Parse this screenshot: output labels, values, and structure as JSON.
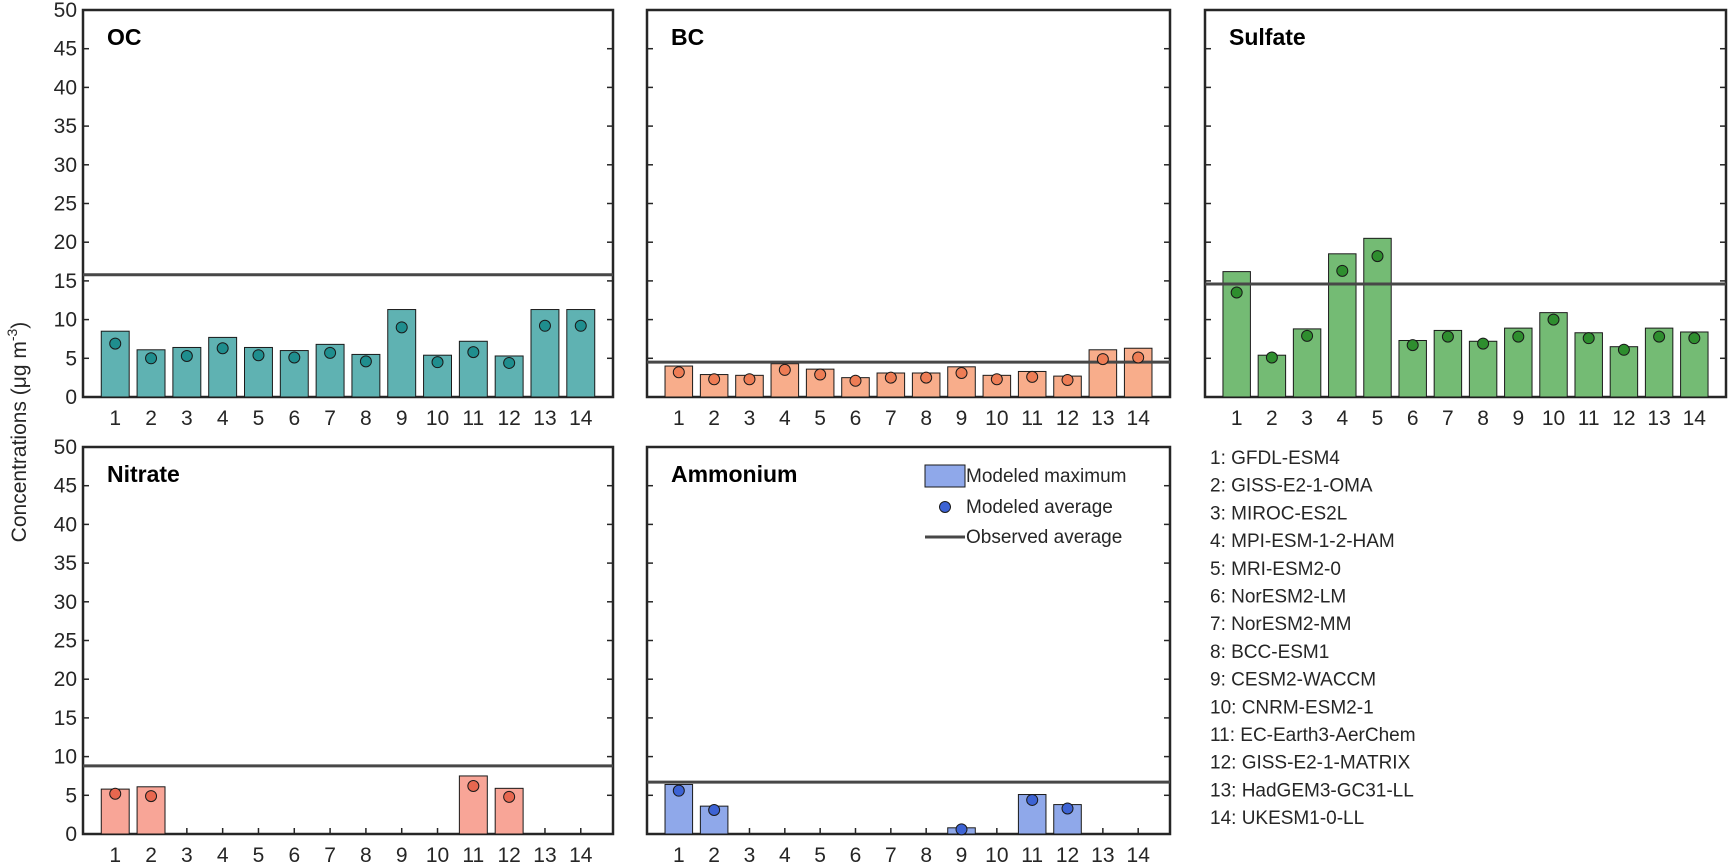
{
  "figure": {
    "ylabel_main": "Concentrations (μg m",
    "ylabel_sup": "-3",
    "ylabel_close": ")"
  },
  "legend": {
    "max_label": "Modeled maximum",
    "avg_label": "Modeled average",
    "obs_label": "Observed average",
    "max_color": "#8fa8ea",
    "avg_color": "#3d63d4"
  },
  "models": [
    "1: GFDL-ESM4",
    "2: GISS-E2-1-OMA",
    "3: MIROC-ES2L",
    "4: MPI-ESM-1-2-HAM",
    "5: MRI-ESM2-0",
    "6: NorESM2-LM",
    "7: NorESM2-MM",
    "8: BCC-ESM1",
    "9: CESM2-WACCM",
    "10: CNRM-ESM2-1",
    "11: EC-Earth3-AerChem",
    "12: GISS-E2-1-MATRIX",
    "13: HadGEM3-GC31-LL",
    "14: UKESM1-0-LL"
  ],
  "chart_data": [
    {
      "type": "bar",
      "title": "OC",
      "categories": [
        "1",
        "2",
        "3",
        "4",
        "5",
        "6",
        "7",
        "8",
        "9",
        "10",
        "11",
        "12",
        "13",
        "14"
      ],
      "ylim": [
        0,
        50
      ],
      "yticks": [
        0,
        5,
        10,
        15,
        20,
        25,
        30,
        35,
        40,
        45,
        50
      ],
      "series": [
        {
          "name": "Modeled maximum",
          "values": [
            8.5,
            6.1,
            6.4,
            7.7,
            6.4,
            6.0,
            6.8,
            5.5,
            11.3,
            5.4,
            7.2,
            5.3,
            11.3,
            11.3
          ]
        },
        {
          "name": "Modeled average",
          "values": [
            6.9,
            5.0,
            5.3,
            6.3,
            5.4,
            5.1,
            5.7,
            4.6,
            9.0,
            4.5,
            5.8,
            4.4,
            9.2,
            9.2
          ]
        }
      ],
      "observed_average": 15.8,
      "bar_color": "#5fb2b2",
      "dot_color": "#1f8e8e"
    },
    {
      "type": "bar",
      "title": "BC",
      "categories": [
        "1",
        "2",
        "3",
        "4",
        "5",
        "6",
        "7",
        "8",
        "9",
        "10",
        "11",
        "12",
        "13",
        "14"
      ],
      "ylim": [
        0,
        50
      ],
      "yticks": [
        0,
        5,
        10,
        15,
        20,
        25,
        30,
        35,
        40,
        45,
        50
      ],
      "series": [
        {
          "name": "Modeled maximum",
          "values": [
            4.0,
            2.9,
            2.8,
            4.3,
            3.6,
            2.5,
            3.1,
            3.1,
            3.9,
            2.8,
            3.3,
            2.7,
            6.1,
            6.3
          ]
        },
        {
          "name": "Modeled average",
          "values": [
            3.2,
            2.3,
            2.3,
            3.5,
            2.9,
            2.1,
            2.5,
            2.5,
            3.1,
            2.3,
            2.6,
            2.2,
            4.9,
            5.1
          ]
        }
      ],
      "observed_average": 4.5,
      "bar_color": "#f8ad8b",
      "dot_color": "#ee7d55"
    },
    {
      "type": "bar",
      "title": "Sulfate",
      "categories": [
        "1",
        "2",
        "3",
        "4",
        "5",
        "6",
        "7",
        "8",
        "9",
        "10",
        "11",
        "12",
        "13",
        "14"
      ],
      "ylim": [
        0,
        50
      ],
      "yticks": [
        0,
        5,
        10,
        15,
        20,
        25,
        30,
        35,
        40,
        45,
        50
      ],
      "series": [
        {
          "name": "Modeled maximum",
          "values": [
            16.2,
            5.4,
            8.8,
            18.5,
            20.5,
            7.3,
            8.6,
            7.2,
            8.9,
            10.9,
            8.3,
            6.5,
            8.9,
            8.4
          ]
        },
        {
          "name": "Modeled average",
          "values": [
            13.5,
            5.1,
            7.9,
            16.3,
            18.2,
            6.7,
            7.8,
            6.9,
            7.8,
            10.0,
            7.6,
            6.1,
            7.8,
            7.6
          ]
        }
      ],
      "observed_average": 14.6,
      "bar_color": "#74bb74",
      "dot_color": "#2e8e2e"
    },
    {
      "type": "bar",
      "title": "Nitrate",
      "categories": [
        "1",
        "2",
        "3",
        "4",
        "5",
        "6",
        "7",
        "8",
        "9",
        "10",
        "11",
        "12",
        "13",
        "14"
      ],
      "ylim": [
        0,
        50
      ],
      "yticks": [
        0,
        5,
        10,
        15,
        20,
        25,
        30,
        35,
        40,
        45,
        50
      ],
      "series": [
        {
          "name": "Modeled maximum",
          "values": [
            5.8,
            6.1,
            null,
            null,
            null,
            null,
            null,
            null,
            null,
            null,
            7.5,
            5.9,
            null,
            null
          ]
        },
        {
          "name": "Modeled average",
          "values": [
            5.2,
            4.9,
            null,
            null,
            null,
            null,
            null,
            null,
            null,
            null,
            6.2,
            4.8,
            null,
            null
          ]
        }
      ],
      "observed_average": 8.8,
      "bar_color": "#f8a597",
      "dot_color": "#e8674f"
    },
    {
      "type": "bar",
      "title": "Ammonium",
      "categories": [
        "1",
        "2",
        "3",
        "4",
        "5",
        "6",
        "7",
        "8",
        "9",
        "10",
        "11",
        "12",
        "13",
        "14"
      ],
      "ylim": [
        0,
        50
      ],
      "yticks": [
        0,
        5,
        10,
        15,
        20,
        25,
        30,
        35,
        40,
        45,
        50
      ],
      "series": [
        {
          "name": "Modeled maximum",
          "values": [
            6.4,
            3.6,
            null,
            null,
            null,
            null,
            null,
            null,
            0.8,
            null,
            5.1,
            3.8,
            null,
            null
          ]
        },
        {
          "name": "Modeled average",
          "values": [
            5.6,
            3.1,
            null,
            null,
            null,
            null,
            null,
            null,
            0.6,
            null,
            4.4,
            3.3,
            null,
            null
          ]
        }
      ],
      "observed_average": 6.7,
      "bar_color": "#8fa8ea",
      "dot_color": "#3d63d4"
    }
  ]
}
